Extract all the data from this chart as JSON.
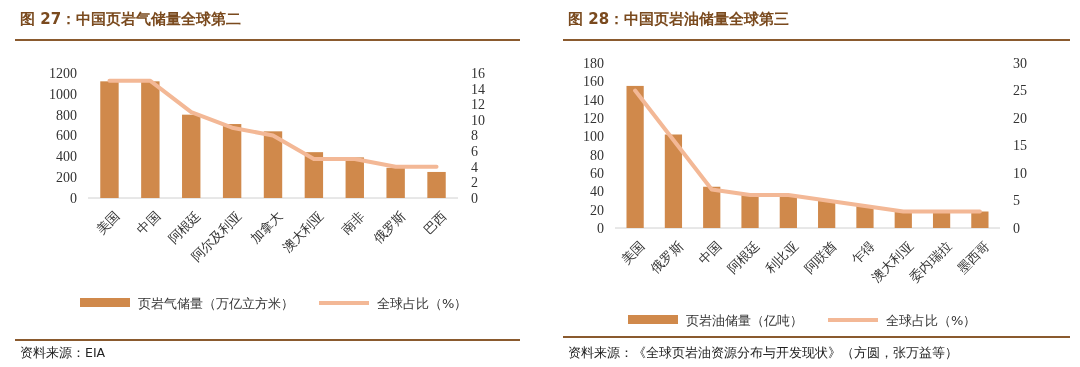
{
  "chart_data": [
    {
      "type": "bar",
      "title": "图 27：中国页岩气储量全球第二",
      "categories": [
        "美国",
        "中国",
        "阿根廷",
        "阿尔及利亚",
        "加拿大",
        "澳大利亚",
        "南非",
        "俄罗斯",
        "巴西"
      ],
      "series": [
        {
          "name": "页岩气储量（万亿立方米）",
          "color": "#d0894b",
          "values": [
            1120,
            1120,
            800,
            710,
            640,
            440,
            390,
            290,
            250
          ]
        },
        {
          "name": "全球占比（%）",
          "type": "line",
          "axis": "y2",
          "color": "#f3b896",
          "values": [
            15,
            15,
            11,
            9,
            8,
            5,
            5,
            4,
            4
          ]
        }
      ],
      "ylim": [
        0,
        1200
      ],
      "yticks": [
        0,
        200,
        400,
        600,
        800,
        1000,
        1200
      ],
      "y2lim": [
        0,
        16
      ],
      "y2ticks": [
        0,
        2,
        4,
        6,
        8,
        10,
        12,
        14,
        16
      ],
      "legend": "bottom",
      "grid": false,
      "annotations": [
        "资料来源：EIA"
      ]
    },
    {
      "type": "bar",
      "title": "图 28：中国页岩油储量全球第三",
      "categories": [
        "美国",
        "俄罗斯",
        "中国",
        "阿根廷",
        "利比亚",
        "阿联酋",
        "乍得",
        "澳大利亚",
        "委内瑞拉",
        "墨西哥"
      ],
      "series": [
        {
          "name": "页岩油储量（亿吨）",
          "color": "#d0894b",
          "values": [
            155,
            102,
            45,
            36,
            36,
            30,
            24,
            18,
            17,
            18
          ]
        },
        {
          "name": "全球占比（%）",
          "type": "line",
          "axis": "y2",
          "color": "#f3b896",
          "values": [
            25,
            16,
            7,
            6,
            6,
            5,
            4,
            3,
            3,
            3
          ]
        }
      ],
      "ylim": [
        0,
        180
      ],
      "yticks": [
        0,
        20,
        40,
        60,
        80,
        100,
        120,
        140,
        160,
        180
      ],
      "y2lim": [
        0,
        30
      ],
      "y2ticks": [
        0,
        5,
        10,
        15,
        20,
        25,
        30
      ],
      "legend": "bottom",
      "grid": false,
      "annotations": [
        "资料来源：《全球页岩油资源分布与开发现状》（方圆，张万益等）"
      ]
    }
  ]
}
